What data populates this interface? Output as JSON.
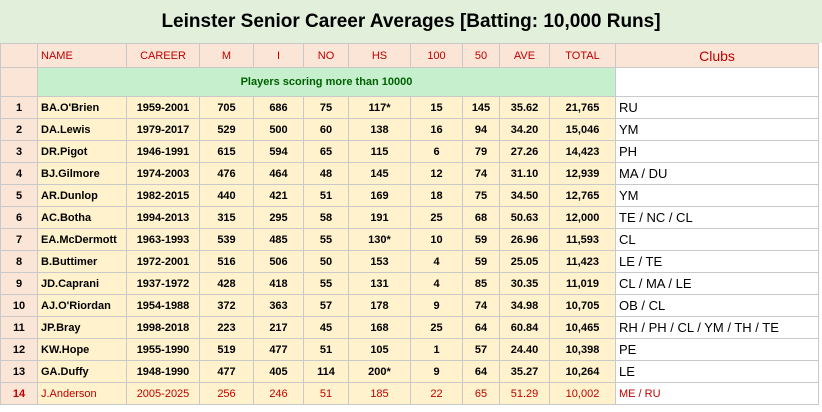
{
  "title": "Leinster Senior Career Averages [Batting: 10,000 Runs]",
  "headers": {
    "name": "NAME",
    "career": "CAREER",
    "m": "M",
    "i": "I",
    "no": "NO",
    "hs": "HS",
    "h100": "100",
    "h50": "50",
    "ave": "AVE",
    "total": "TOTAL",
    "clubs": "Clubs"
  },
  "subheader": "Players scoring more than 10000",
  "rows": [
    {
      "n": "1",
      "name": "BA.O'Brien",
      "career": "1959-2001",
      "m": "705",
      "i": "686",
      "no": "75",
      "hs": "117*",
      "h100": "15",
      "h50": "145",
      "ave": "35.62",
      "total": "21,765",
      "clubs": "RU"
    },
    {
      "n": "2",
      "name": "DA.Lewis",
      "career": "1979-2017",
      "m": "529",
      "i": "500",
      "no": "60",
      "hs": "138",
      "h100": "16",
      "h50": "94",
      "ave": "34.20",
      "total": "15,046",
      "clubs": "YM"
    },
    {
      "n": "3",
      "name": "DR.Pigot",
      "career": "1946-1991",
      "m": "615",
      "i": "594",
      "no": "65",
      "hs": "115",
      "h100": "6",
      "h50": "79",
      "ave": "27.26",
      "total": "14,423",
      "clubs": "PH"
    },
    {
      "n": "4",
      "name": "BJ.Gilmore",
      "career": "1974-2003",
      "m": "476",
      "i": "464",
      "no": "48",
      "hs": "145",
      "h100": "12",
      "h50": "74",
      "ave": "31.10",
      "total": "12,939",
      "clubs": "MA / DU"
    },
    {
      "n": "5",
      "name": "AR.Dunlop",
      "career": "1982-2015",
      "m": "440",
      "i": "421",
      "no": "51",
      "hs": "169",
      "h100": "18",
      "h50": "75",
      "ave": "34.50",
      "total": "12,765",
      "clubs": "YM"
    },
    {
      "n": "6",
      "name": "AC.Botha",
      "career": "1994-2013",
      "m": "315",
      "i": "295",
      "no": "58",
      "hs": "191",
      "h100": "25",
      "h50": "68",
      "ave": "50.63",
      "total": "12,000",
      "clubs": "TE / NC / CL"
    },
    {
      "n": "7",
      "name": "EA.McDermott",
      "career": "1963-1993",
      "m": "539",
      "i": "485",
      "no": "55",
      "hs": "130*",
      "h100": "10",
      "h50": "59",
      "ave": "26.96",
      "total": "11,593",
      "clubs": "CL"
    },
    {
      "n": "8",
      "name": "B.Buttimer",
      "career": "1972-2001",
      "m": "516",
      "i": "506",
      "no": "50",
      "hs": "153",
      "h100": "4",
      "h50": "59",
      "ave": "25.05",
      "total": "11,423",
      "clubs": "LE / TE"
    },
    {
      "n": "9",
      "name": "JD.Caprani",
      "career": "1937-1972",
      "m": "428",
      "i": "418",
      "no": "55",
      "hs": "131",
      "h100": "4",
      "h50": "85",
      "ave": "30.35",
      "total": "11,019",
      "clubs": "CL / MA / LE"
    },
    {
      "n": "10",
      "name": "AJ.O'Riordan",
      "career": "1954-1988",
      "m": "372",
      "i": "363",
      "no": "57",
      "hs": "178",
      "h100": "9",
      "h50": "74",
      "ave": "34.98",
      "total": "10,705",
      "clubs": "OB / CL"
    },
    {
      "n": "11",
      "name": "JP.Bray",
      "career": "1998-2018",
      "m": "223",
      "i": "217",
      "no": "45",
      "hs": "168",
      "h100": "25",
      "h50": "64",
      "ave": "60.84",
      "total": "10,465",
      "clubs": "RH / PH / CL / YM / TH / TE"
    },
    {
      "n": "12",
      "name": "KW.Hope",
      "career": "1955-1990",
      "m": "519",
      "i": "477",
      "no": "51",
      "hs": "105",
      "h100": "1",
      "h50": "57",
      "ave": "24.40",
      "total": "10,398",
      "clubs": "PE"
    },
    {
      "n": "13",
      "name": "GA.Duffy",
      "career": "1948-1990",
      "m": "477",
      "i": "405",
      "no": "114",
      "hs": "200*",
      "h100": "9",
      "h50": "64",
      "ave": "35.27",
      "total": "10,264",
      "clubs": "LE"
    },
    {
      "n": "14",
      "name": "J.Anderson",
      "career": "2005-2025",
      "m": "256",
      "i": "246",
      "no": "51",
      "hs": "185",
      "h100": "22",
      "h50": "65",
      "ave": "51.29",
      "total": "10,002",
      "clubs": "ME / RU"
    }
  ]
}
